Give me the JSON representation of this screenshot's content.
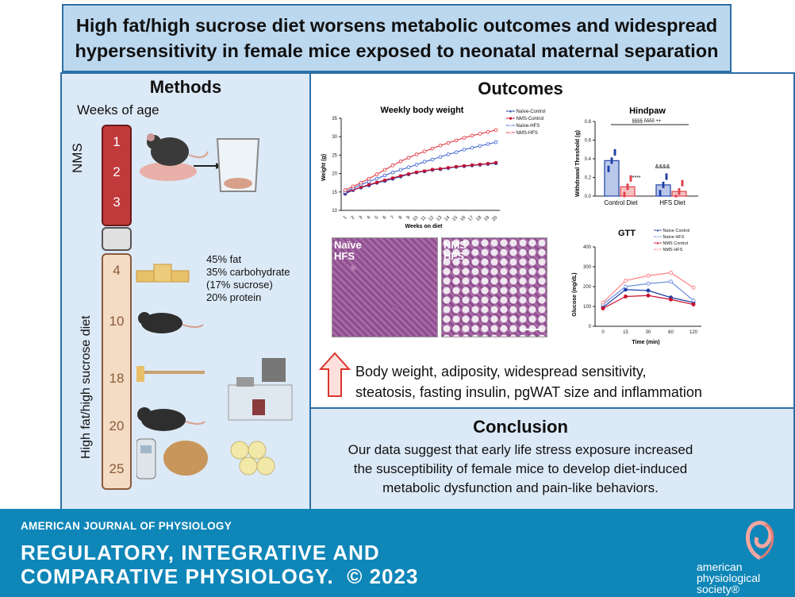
{
  "title": {
    "line1": "High fat/high sucrose diet worsens metabolic outcomes and widespread",
    "line2": "hypersensitivity in female mice exposed to neonatal maternal separation"
  },
  "methods": {
    "heading": "Methods",
    "weeks_label": "Weeks of age",
    "nms_label": "NMS",
    "diet_label": "High fat/high sucrose diet",
    "nms_weeks": [
      "1",
      "2",
      "3"
    ],
    "diet_weeks": [
      "4",
      "10",
      "18",
      "20",
      "25"
    ],
    "diet_composition": [
      "45% fat",
      "35% carbohydrate",
      "(17% sucrose)",
      "20% protein"
    ]
  },
  "outcomes": {
    "heading": "Outcomes",
    "summary_line1": "Body weight, adiposity, widespread sensitivity,",
    "summary_line2": "steatosis, fasting insulin, pgWAT size and inflammation",
    "micro_left": [
      "Naïve",
      "HFS"
    ],
    "micro_right": [
      "NMS",
      "HFS"
    ]
  },
  "chart_data": [
    {
      "type": "line",
      "title": "Weekly body weight",
      "xlabel": "Weeks on diet",
      "ylabel": "Weight (g)",
      "ylim": [
        10,
        35
      ],
      "x": [
        1,
        2,
        3,
        4,
        5,
        6,
        7,
        8,
        9,
        10,
        11,
        12,
        13,
        14,
        15,
        16,
        17,
        18,
        19,
        20
      ],
      "yticks": [
        10,
        15,
        20,
        25,
        30,
        35
      ],
      "legend": [
        "Naïve-Control",
        "NMS-Control",
        "Naïve-HFS",
        "NMS-HFS"
      ],
      "series": [
        {
          "name": "Naïve-Control",
          "color": "#1f3fa6",
          "values": [
            14.5,
            15.5,
            16.2,
            16.8,
            17.5,
            18,
            18.6,
            19.2,
            19.8,
            20.3,
            20.6,
            21,
            21.2,
            21.5,
            21.8,
            22,
            22.2,
            22.4,
            22.6,
            22.8
          ]
        },
        {
          "name": "NMS-Control",
          "color": "#c8102e",
          "values": [
            14.8,
            15.6,
            16.3,
            17,
            17.6,
            18.2,
            18.8,
            19.4,
            19.9,
            20.4,
            20.7,
            21.1,
            21.3,
            21.6,
            21.9,
            22.1,
            22.3,
            22.5,
            22.7,
            23
          ]
        },
        {
          "name": "Naïve-HFS",
          "color": "#4a6fd0",
          "values": [
            15,
            16,
            17,
            17.8,
            18.6,
            19.5,
            20.3,
            21,
            21.7,
            22.4,
            23.2,
            23.8,
            24.5,
            25.2,
            25.8,
            26.5,
            27,
            27.5,
            28,
            28.5
          ]
        },
        {
          "name": "NMS-HFS",
          "color": "#e0404a",
          "values": [
            15.5,
            16.5,
            17.5,
            18.6,
            19.8,
            21,
            22.2,
            23.3,
            24.3,
            25.2,
            26,
            26.8,
            27.6,
            28.3,
            29,
            29.7,
            30.3,
            30.8,
            31.3,
            31.8
          ]
        }
      ],
      "annotations": [
        "#",
        "#",
        "&",
        "@"
      ]
    },
    {
      "type": "bar",
      "title": "Hindpaw",
      "ylabel": "Withdrawal Threshold (g)",
      "ylim": [
        0,
        0.8
      ],
      "yticks": [
        0.0,
        0.2,
        0.4,
        0.6,
        0.8
      ],
      "categories": [
        "Control Diet",
        "HFS Diet"
      ],
      "series": [
        {
          "name": "Naïve",
          "color": "#1f3fa6",
          "values": [
            0.38,
            0.12
          ]
        },
        {
          "name": "NMS",
          "color": "#e0404a",
          "values": [
            0.1,
            0.05
          ]
        }
      ],
      "annotations": [
        "§§§§ δδδδ ++",
        "****",
        "&&&&"
      ]
    },
    {
      "type": "line",
      "title": "GTT",
      "xlabel": "Time (min)",
      "ylabel": "Glucose (mg/dL)",
      "ylim": [
        0,
        400
      ],
      "yticks": [
        0,
        100,
        200,
        300,
        400
      ],
      "x": [
        0,
        15,
        30,
        60,
        120
      ],
      "legend": [
        "Naïve Control",
        "Naïve HFS",
        "NMS Control",
        "NMS HFS"
      ],
      "series": [
        {
          "name": "Naïve Control",
          "color": "#1f3fa6",
          "values": [
            95,
            185,
            180,
            145,
            120
          ]
        },
        {
          "name": "Naïve HFS",
          "color": "#6f8fe0",
          "values": [
            110,
            200,
            215,
            225,
            130
          ]
        },
        {
          "name": "NMS Control",
          "color": "#c8102e",
          "values": [
            90,
            150,
            155,
            135,
            110
          ]
        },
        {
          "name": "NMS HFS",
          "color": "#ff8080",
          "values": [
            120,
            230,
            255,
            270,
            195
          ]
        }
      ],
      "annotations": [
        "&",
        "&&",
        "&&",
        "&&&",
        "&&",
        "&&&",
        "#"
      ]
    }
  ],
  "conclusion": {
    "heading": "Conclusion",
    "line1": "Our data suggest that early life stress exposure increased",
    "line2": "the susceptibility of female mice to develop diet-induced",
    "line3": "metabolic dysfunction and pain-like behaviors."
  },
  "footer": {
    "journal_small": "AMERICAN JOURNAL OF PHYSIOLOGY",
    "journal_big1": "REGULATORY, INTEGRATIVE AND",
    "journal_big2": "COMPARATIVE PHYSIOLOGY.",
    "copyright": "© 2023",
    "society1": "american",
    "society2": "physiological",
    "society3": "society®"
  }
}
